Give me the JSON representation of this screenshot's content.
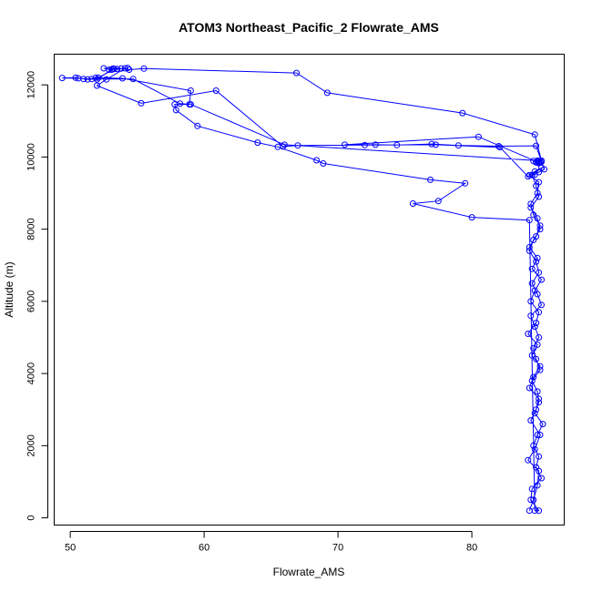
{
  "chart_data": {
    "type": "line",
    "title": "ATOM3 Northeast_Pacific_2 Flowrate_AMS",
    "xlabel": "Flowrate_AMS",
    "ylabel": "Altitude (m)",
    "xlim": [
      48.8,
      86.9
    ],
    "ylim": [
      -200,
      12850
    ],
    "xticks": [
      50,
      60,
      70,
      80
    ],
    "yticks": [
      0,
      2000,
      4000,
      6000,
      8000,
      10000,
      12000
    ],
    "grid": false,
    "legend": "none",
    "series_color": "#0000ff",
    "marker": "open-circle",
    "series": [
      {
        "x": [
          84.3,
          84.6,
          84.9,
          85.0,
          84.2,
          84.7,
          85.1,
          84.4,
          84.8,
          85.0,
          84.3,
          84.6,
          85.1,
          84.5,
          84.9,
          84.2,
          84.8,
          85.0,
          84.4,
          84.7,
          85.2,
          84.5,
          84.9,
          84.3,
          84.8,
          85.1,
          84.6,
          84.4,
          84.9,
          85.0,
          84.3,
          84.7,
          85.2,
          84.5,
          84.8,
          85.0,
          84.4,
          84.9,
          85.1,
          84.6,
          84.3,
          84.8,
          85.0,
          84.5,
          84.9,
          85.2,
          84.4,
          84.7,
          85.0,
          84.6,
          84.8,
          85.1,
          84.5,
          84.9,
          85.0,
          84.7,
          85.3,
          84.9,
          84.6,
          85.0,
          84.8,
          85.2,
          84.5,
          84.4,
          85.0,
          84.7,
          84.3,
          80.0,
          75.6,
          77.5,
          79.5,
          76.9,
          68.9,
          68.4,
          65.5,
          64.0,
          59.5,
          57.9,
          57.8,
          58.9,
          59.0,
          53.9,
          51.9,
          51.3,
          50.4,
          49.4,
          50.6,
          52.0,
          53.2,
          53.8,
          54.4,
          55.5,
          66.9,
          69.2,
          79.3,
          84.7,
          85.2,
          84.6,
          84.9,
          85.1,
          84.8,
          85.0,
          80.5,
          70.5,
          72.8,
          74.4,
          77.0,
          79.0,
          82.0,
          84.8,
          85.4,
          85.0,
          84.7,
          84.2,
          82.1,
          77.3,
          72.0,
          67.0,
          65.9,
          60.9,
          55.3,
          52.0,
          52.7,
          54.1,
          52.9,
          53.5,
          52.5,
          53.1,
          54.3,
          53.3,
          52.1,
          51.6,
          51.0,
          54.7,
          58.2,
          59.0,
          66.0,
          84.9,
          85.2,
          84.8,
          85.0
        ],
        "y": [
          200,
          500,
          900,
          1300,
          1600,
          1900,
          2300,
          2700,
          3000,
          3300,
          3600,
          3900,
          4200,
          4500,
          4800,
          5100,
          5400,
          5700,
          6000,
          6300,
          6600,
          6900,
          7200,
          7500,
          7800,
          8100,
          8400,
          8700,
          9000,
          9300,
          9500,
          9600,
          9700,
          9500,
          9200,
          8900,
          8600,
          8300,
          8000,
          7700,
          7400,
          7100,
          6800,
          6500,
          6200,
          5900,
          5600,
          5300,
          5000,
          4700,
          4400,
          4100,
          3800,
          3500,
          3200,
          2900,
          2600,
          2300,
          2000,
          1700,
          1400,
          1100,
          800,
          500,
          200,
          200,
          8250,
          8330,
          8710,
          8780,
          9270,
          9370,
          9820,
          9910,
          10280,
          10400,
          10860,
          11300,
          11460,
          11460,
          11840,
          12180,
          12200,
          12150,
          12200,
          12190,
          12180,
          12150,
          12450,
          12450,
          12420,
          12450,
          12330,
          11780,
          11220,
          10620,
          9900,
          9890,
          9880,
          9870,
          9860,
          9850,
          10560,
          10340,
          10340,
          10330,
          10360,
          10320,
          10300,
          10310,
          9660,
          9580,
          9510,
          9460,
          10270,
          10340,
          10330,
          10320,
          10290,
          11840,
          11490,
          11980,
          12150,
          12460,
          12420,
          12440,
          12460,
          12420,
          12470,
          12440,
          12200,
          12160,
          12160,
          12160,
          11480,
          11460,
          10340,
          9900,
          9870,
          9850,
          9830
        ]
      }
    ]
  }
}
